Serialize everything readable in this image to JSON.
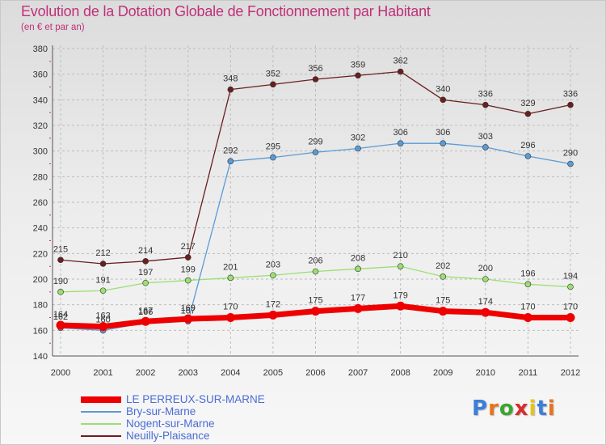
{
  "title": "Evolution de la Dotation Globale de Fonctionnement par Habitant",
  "subtitle": "(en € et par an)",
  "brand": {
    "text": "Proxiti",
    "letters": [
      "P",
      "r",
      "o",
      "x",
      "i",
      "t",
      "i"
    ],
    "colors": [
      "#3b7fd9",
      "#e8731c",
      "#3ba62f",
      "#d92b2b",
      "#e8c21c",
      "#3b7fd9",
      "#e8731c"
    ]
  },
  "colors": {
    "title": "#c0307a",
    "legend_text": "#4a6cd4",
    "grid": "#bdbdbd",
    "minor_tick": "#c0307a"
  },
  "chart_data": {
    "type": "line",
    "title": "Evolution de la Dotation Globale de Fonctionnement par Habitant",
    "subtitle": "(en € et par an)",
    "xlabel": "",
    "ylabel": "",
    "x": [
      "2000",
      "2001",
      "2002",
      "2003",
      "2004",
      "2005",
      "2006",
      "2007",
      "2008",
      "2009",
      "2010",
      "2011",
      "2012"
    ],
    "ylim": [
      140,
      380
    ],
    "yticks": [
      140,
      160,
      180,
      200,
      220,
      240,
      260,
      280,
      300,
      320,
      340,
      360,
      380
    ],
    "grid": true,
    "legend_position": "bottom-left",
    "series": [
      {
        "name": "LE PERREUX-SUR-MARNE",
        "color": "#ee0000",
        "values": [
          164,
          163,
          167,
          169,
          170,
          172,
          175,
          177,
          179,
          175,
          174,
          170,
          170
        ],
        "labels": [
          "164",
          "163",
          "167",
          "169",
          "170",
          "172",
          "175",
          "177",
          "179",
          "175",
          "174",
          "170",
          "170"
        ]
      },
      {
        "name": "Bry-sur-Marne",
        "color": "#5b9bd5",
        "values": [
          162,
          160,
          166,
          167,
          292,
          295,
          299,
          302,
          306,
          306,
          303,
          296,
          290
        ],
        "labels": [
          "162",
          "160",
          "166",
          "167",
          "292",
          "295",
          "299",
          "302",
          "306",
          "306",
          "303",
          "296",
          "290"
        ]
      },
      {
        "name": "Nogent-sur-Marne",
        "color": "#99e070",
        "values": [
          190,
          191,
          197,
          199,
          201,
          203,
          206,
          208,
          210,
          202,
          200,
          196,
          194
        ],
        "labels": [
          "190",
          "191",
          "197",
          "199",
          "201",
          "203",
          "206",
          "208",
          "210",
          "202",
          "200",
          "196",
          "194"
        ]
      },
      {
        "name": "Neuilly-Plaisance",
        "color": "#6b1e1e",
        "values": [
          215,
          212,
          214,
          217,
          348,
          352,
          356,
          359,
          362,
          340,
          336,
          329,
          336
        ],
        "labels": [
          "215",
          "212",
          "214",
          "217",
          "348",
          "352",
          "356",
          "359",
          "362",
          "340",
          "336",
          "329",
          "336"
        ]
      }
    ]
  }
}
